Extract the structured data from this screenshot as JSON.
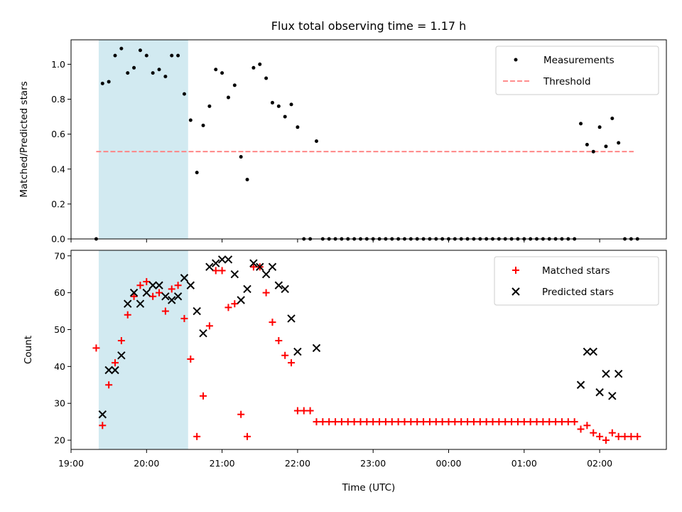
{
  "chart_data": {
    "title": "Flux total observing time = 1.17 h",
    "xlabel": "Time (UTC)",
    "x_ticks": [
      "19:00",
      "20:00",
      "21:00",
      "22:00",
      "23:00",
      "00:00",
      "01:00",
      "02:00"
    ],
    "xlim": [
      "19:00",
      "02:53"
    ],
    "highlight_span": {
      "start": "19:22",
      "end": "20:33",
      "color": "#add8e6"
    },
    "top": {
      "type": "scatter",
      "ylabel": "Matched/Predicted stars",
      "ylim": [
        0,
        1.14
      ],
      "y_ticks": [
        "0.0",
        "0.2",
        "0.4",
        "0.6",
        "0.8",
        "1.0"
      ],
      "legend": {
        "position": "top-right",
        "measurements_label": "Measurements",
        "threshold_label": "Threshold"
      },
      "threshold": {
        "value": 0.5,
        "from": "19:20",
        "to": "02:27",
        "color": "#ff7f7f"
      },
      "measurements": {
        "color": "#000000",
        "points": [
          [
            "19:20",
            0.0
          ],
          [
            "19:25",
            0.89
          ],
          [
            "19:30",
            0.9
          ],
          [
            "19:35",
            1.05
          ],
          [
            "19:40",
            1.09
          ],
          [
            "19:45",
            0.95
          ],
          [
            "19:50",
            0.98
          ],
          [
            "19:55",
            1.08
          ],
          [
            "20:00",
            1.05
          ],
          [
            "20:05",
            0.95
          ],
          [
            "20:10",
            0.97
          ],
          [
            "20:15",
            0.93
          ],
          [
            "20:20",
            1.05
          ],
          [
            "20:25",
            1.05
          ],
          [
            "20:30",
            0.83
          ],
          [
            "20:35",
            0.68
          ],
          [
            "20:40",
            0.38
          ],
          [
            "20:45",
            0.65
          ],
          [
            "20:50",
            0.76
          ],
          [
            "20:55",
            0.97
          ],
          [
            "21:00",
            0.95
          ],
          [
            "21:05",
            0.81
          ],
          [
            "21:10",
            0.88
          ],
          [
            "21:15",
            0.47
          ],
          [
            "21:20",
            0.34
          ],
          [
            "21:25",
            0.98
          ],
          [
            "21:30",
            1.0
          ],
          [
            "21:35",
            0.92
          ],
          [
            "21:40",
            0.78
          ],
          [
            "21:45",
            0.76
          ],
          [
            "21:50",
            0.7
          ],
          [
            "21:55",
            0.77
          ],
          [
            "22:00",
            0.64
          ],
          [
            "22:05",
            0.0
          ],
          [
            "22:10",
            0.0
          ],
          [
            "22:15",
            0.56
          ],
          [
            "22:20",
            0.0
          ],
          [
            "22:25",
            0.0
          ],
          [
            "22:30",
            0.0
          ],
          [
            "22:35",
            0.0
          ],
          [
            "22:40",
            0.0
          ],
          [
            "22:45",
            0.0
          ],
          [
            "22:50",
            0.0
          ],
          [
            "22:55",
            0.0
          ],
          [
            "23:00",
            0.0
          ],
          [
            "23:05",
            0.0
          ],
          [
            "23:10",
            0.0
          ],
          [
            "23:15",
            0.0
          ],
          [
            "23:20",
            0.0
          ],
          [
            "23:25",
            0.0
          ],
          [
            "23:30",
            0.0
          ],
          [
            "23:35",
            0.0
          ],
          [
            "23:40",
            0.0
          ],
          [
            "23:45",
            0.0
          ],
          [
            "23:50",
            0.0
          ],
          [
            "23:55",
            0.0
          ],
          [
            "00:00",
            0.0
          ],
          [
            "00:05",
            0.0
          ],
          [
            "00:10",
            0.0
          ],
          [
            "00:15",
            0.0
          ],
          [
            "00:20",
            0.0
          ],
          [
            "00:25",
            0.0
          ],
          [
            "00:30",
            0.0
          ],
          [
            "00:35",
            0.0
          ],
          [
            "00:40",
            0.0
          ],
          [
            "00:45",
            0.0
          ],
          [
            "00:50",
            0.0
          ],
          [
            "00:55",
            0.0
          ],
          [
            "01:00",
            0.0
          ],
          [
            "01:05",
            0.0
          ],
          [
            "01:10",
            0.0
          ],
          [
            "01:15",
            0.0
          ],
          [
            "01:20",
            0.0
          ],
          [
            "01:25",
            0.0
          ],
          [
            "01:30",
            0.0
          ],
          [
            "01:35",
            0.0
          ],
          [
            "01:40",
            0.0
          ],
          [
            "01:45",
            0.66
          ],
          [
            "01:50",
            0.54
          ],
          [
            "01:55",
            0.5
          ],
          [
            "02:00",
            0.64
          ],
          [
            "02:05",
            0.53
          ],
          [
            "02:10",
            0.69
          ],
          [
            "02:15",
            0.55
          ],
          [
            "02:20",
            0.0
          ],
          [
            "02:25",
            0.0
          ],
          [
            "02:30",
            0.0
          ]
        ]
      }
    },
    "bottom": {
      "type": "scatter",
      "ylabel": "Count",
      "ylim": [
        17.5,
        71.5
      ],
      "y_ticks": [
        "20",
        "30",
        "40",
        "50",
        "60",
        "70"
      ],
      "legend": {
        "position": "top-right"
      },
      "series": [
        {
          "name": "Matched stars",
          "marker": "plus",
          "color": "#ff0000",
          "points": [
            [
              "19:20",
              45
            ],
            [
              "19:25",
              24
            ],
            [
              "19:30",
              35
            ],
            [
              "19:35",
              41
            ],
            [
              "19:40",
              47
            ],
            [
              "19:45",
              54
            ],
            [
              "19:50",
              59
            ],
            [
              "19:55",
              62
            ],
            [
              "20:00",
              63
            ],
            [
              "20:05",
              59
            ],
            [
              "20:10",
              60
            ],
            [
              "20:15",
              55
            ],
            [
              "20:20",
              61
            ],
            [
              "20:25",
              62
            ],
            [
              "20:30",
              53
            ],
            [
              "20:35",
              42
            ],
            [
              "20:40",
              21
            ],
            [
              "20:45",
              32
            ],
            [
              "20:50",
              51
            ],
            [
              "20:55",
              66
            ],
            [
              "21:00",
              66
            ],
            [
              "21:05",
              56
            ],
            [
              "21:10",
              57
            ],
            [
              "21:15",
              27
            ],
            [
              "21:20",
              21
            ],
            [
              "21:25",
              67
            ],
            [
              "21:30",
              67
            ],
            [
              "21:35",
              60
            ],
            [
              "21:40",
              52
            ],
            [
              "21:45",
              47
            ],
            [
              "21:50",
              43
            ],
            [
              "21:55",
              41
            ],
            [
              "22:00",
              28
            ],
            [
              "22:05",
              28
            ],
            [
              "22:10",
              28
            ],
            [
              "22:15",
              25
            ],
            [
              "22:20",
              25
            ],
            [
              "22:25",
              25
            ],
            [
              "22:30",
              25
            ],
            [
              "22:35",
              25
            ],
            [
              "22:40",
              25
            ],
            [
              "22:45",
              25
            ],
            [
              "22:50",
              25
            ],
            [
              "22:55",
              25
            ],
            [
              "23:00",
              25
            ],
            [
              "23:05",
              25
            ],
            [
              "23:10",
              25
            ],
            [
              "23:15",
              25
            ],
            [
              "23:20",
              25
            ],
            [
              "23:25",
              25
            ],
            [
              "23:30",
              25
            ],
            [
              "23:35",
              25
            ],
            [
              "23:40",
              25
            ],
            [
              "23:45",
              25
            ],
            [
              "23:50",
              25
            ],
            [
              "23:55",
              25
            ],
            [
              "00:00",
              25
            ],
            [
              "00:05",
              25
            ],
            [
              "00:10",
              25
            ],
            [
              "00:15",
              25
            ],
            [
              "00:20",
              25
            ],
            [
              "00:25",
              25
            ],
            [
              "00:30",
              25
            ],
            [
              "00:35",
              25
            ],
            [
              "00:40",
              25
            ],
            [
              "00:45",
              25
            ],
            [
              "00:50",
              25
            ],
            [
              "00:55",
              25
            ],
            [
              "01:00",
              25
            ],
            [
              "01:05",
              25
            ],
            [
              "01:10",
              25
            ],
            [
              "01:15",
              25
            ],
            [
              "01:20",
              25
            ],
            [
              "01:25",
              25
            ],
            [
              "01:30",
              25
            ],
            [
              "01:35",
              25
            ],
            [
              "01:40",
              25
            ],
            [
              "01:45",
              23
            ],
            [
              "01:50",
              24
            ],
            [
              "01:55",
              22
            ],
            [
              "02:00",
              21
            ],
            [
              "02:05",
              20
            ],
            [
              "02:10",
              22
            ],
            [
              "02:15",
              21
            ],
            [
              "02:20",
              21
            ],
            [
              "02:25",
              21
            ],
            [
              "02:30",
              21
            ]
          ]
        },
        {
          "name": "Predicted stars",
          "marker": "x",
          "color": "#000000",
          "points": [
            [
              "19:25",
              27
            ],
            [
              "19:30",
              39
            ],
            [
              "19:35",
              39
            ],
            [
              "19:40",
              43
            ],
            [
              "19:45",
              57
            ],
            [
              "19:50",
              60
            ],
            [
              "19:55",
              57
            ],
            [
              "20:00",
              60
            ],
            [
              "20:05",
              62
            ],
            [
              "20:10",
              62
            ],
            [
              "20:15",
              59
            ],
            [
              "20:20",
              58
            ],
            [
              "20:25",
              59
            ],
            [
              "20:30",
              64
            ],
            [
              "20:35",
              62
            ],
            [
              "20:40",
              55
            ],
            [
              "20:45",
              49
            ],
            [
              "20:50",
              67
            ],
            [
              "20:55",
              68
            ],
            [
              "21:00",
              69
            ],
            [
              "21:05",
              69
            ],
            [
              "21:10",
              65
            ],
            [
              "21:15",
              58
            ],
            [
              "21:20",
              61
            ],
            [
              "21:25",
              68
            ],
            [
              "21:30",
              67
            ],
            [
              "21:35",
              65
            ],
            [
              "21:40",
              67
            ],
            [
              "21:45",
              62
            ],
            [
              "21:50",
              61
            ],
            [
              "21:55",
              53
            ],
            [
              "22:00",
              44
            ],
            [
              "22:15",
              45
            ],
            [
              "01:45",
              35
            ],
            [
              "01:50",
              44
            ],
            [
              "01:55",
              44
            ],
            [
              "02:00",
              33
            ],
            [
              "02:05",
              38
            ],
            [
              "02:10",
              32
            ],
            [
              "02:15",
              38
            ]
          ]
        }
      ]
    }
  }
}
